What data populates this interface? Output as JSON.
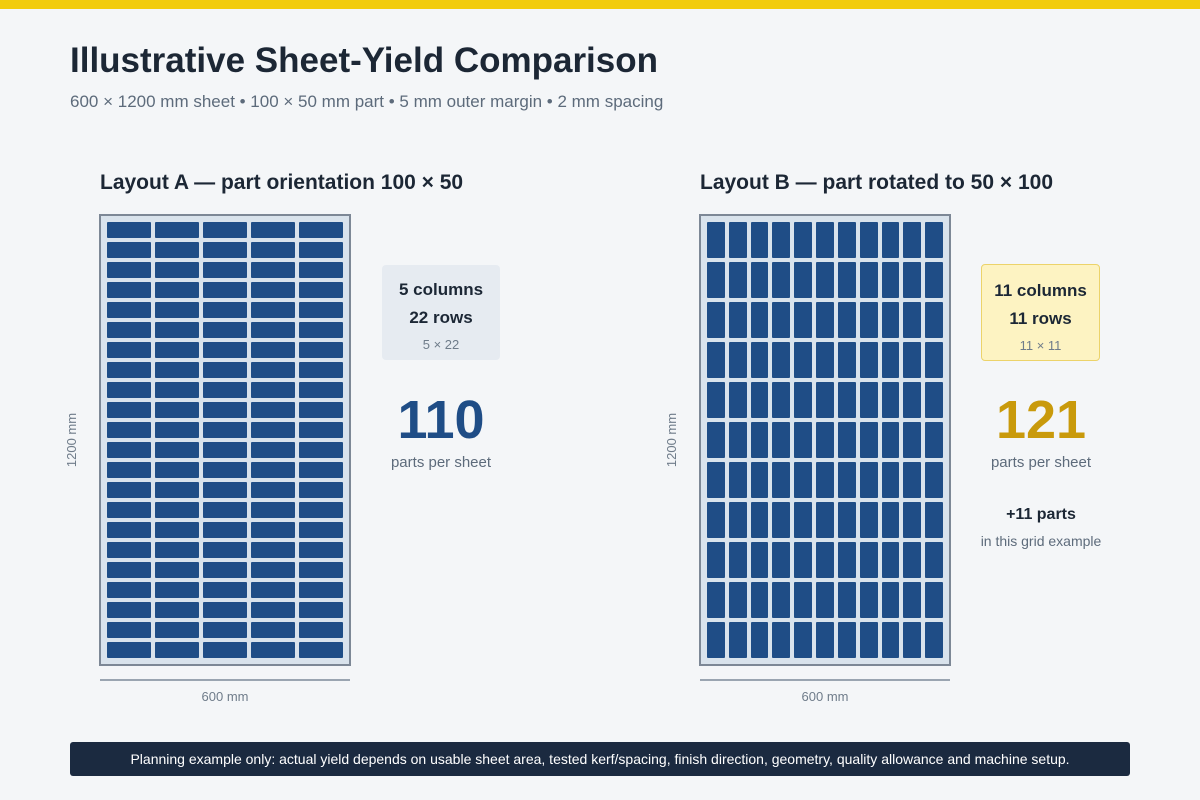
{
  "header": {
    "title": "Illustrative Sheet-Yield Comparison",
    "subtitle": "600 × 1200 mm sheet • 100 × 50 mm part • 5 mm outer margin • 2 mm spacing"
  },
  "layouts": {
    "a": {
      "title": "Layout A — part orientation 100 × 50",
      "columns": 5,
      "rows": 22,
      "columns_label": "5 columns",
      "rows_label": "22 rows",
      "formula": "5 × 22",
      "total": "110",
      "total_caption": "parts per sheet",
      "sheet_width_label": "600 mm",
      "sheet_height_label": "1200 mm"
    },
    "b": {
      "title": "Layout B — part rotated to 50 × 100",
      "columns": 11,
      "rows": 11,
      "columns_label": "11 columns",
      "rows_label": "11 rows",
      "formula": "11 × 11",
      "total": "121",
      "total_caption": "parts per sheet",
      "difference": "+11 parts",
      "difference_note": "in this grid example",
      "sheet_width_label": "600 mm",
      "sheet_height_label": "1200 mm"
    }
  },
  "colors": {
    "accent_bar": "#f2cc0c",
    "part_fill": "#1f4d86",
    "sheet_fill": "#d9e3ec",
    "highlight": "#c99a0b"
  },
  "footer": {
    "note": "Planning example only: actual yield depends on usable sheet area, tested kerf/spacing, finish direction, geometry, quality allowance and machine setup."
  }
}
